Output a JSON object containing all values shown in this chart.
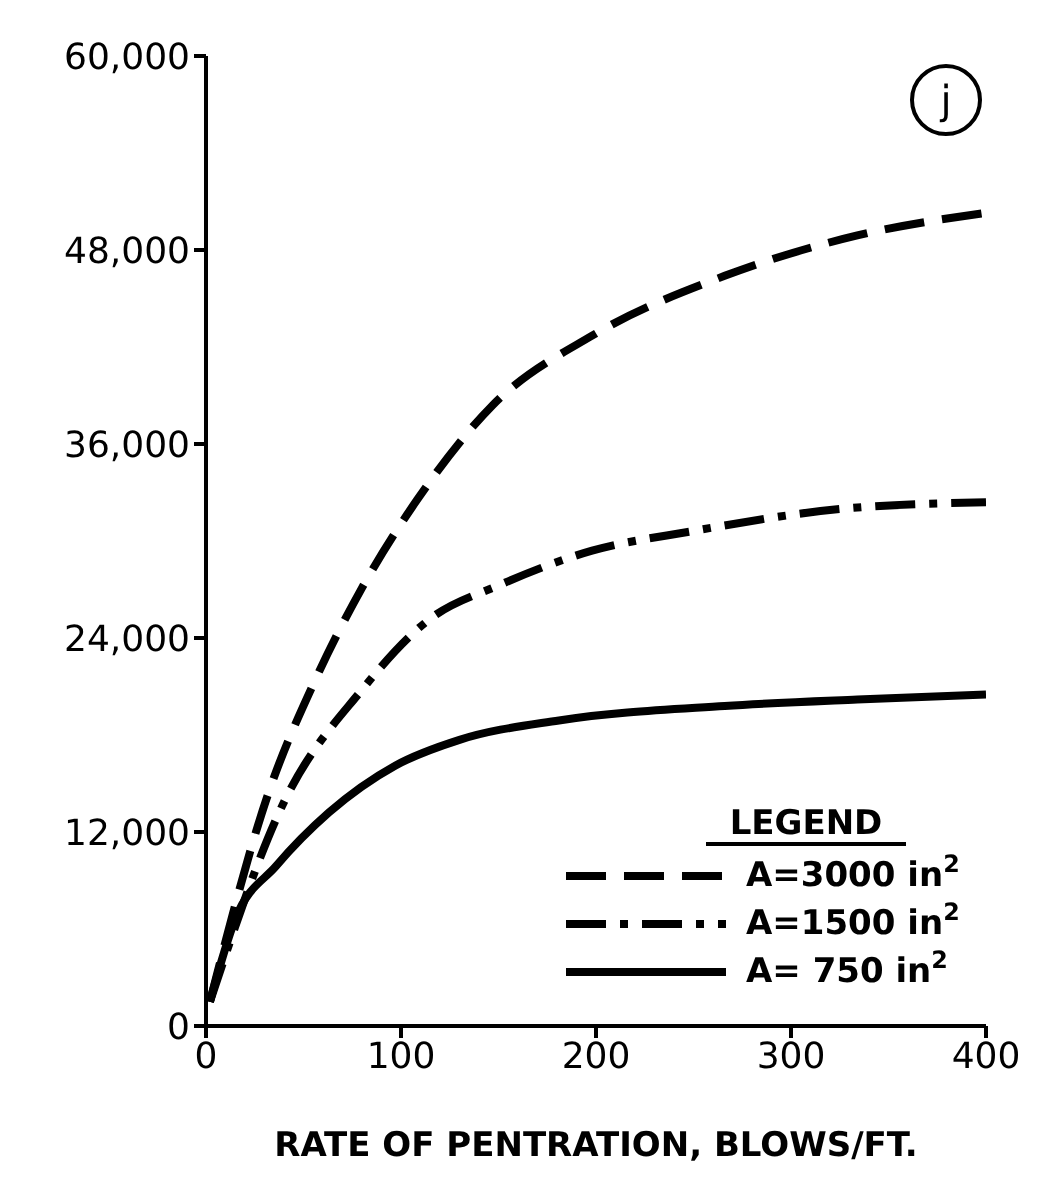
{
  "chart_data": {
    "type": "line",
    "xlabel": "RATE OF PENTRATION, BLOWS/FT.",
    "legend_title": "LEGEND",
    "annotations": [
      "j"
    ],
    "xlim": [
      0,
      400
    ],
    "xticks": [
      0,
      100,
      200,
      300,
      400
    ],
    "ylim": [
      0,
      60000
    ],
    "yticks": [
      {
        "value": 0,
        "label": "0"
      },
      {
        "value": 12000,
        "label": "12,000"
      },
      {
        "value": 24000,
        "label": "24,000"
      },
      {
        "value": 36000,
        "label": "36,000"
      },
      {
        "value": 48000,
        "label": "48,000"
      },
      {
        "value": 60000,
        "label": "60,000"
      }
    ],
    "grid": false,
    "legend": "bottom right",
    "marker": "none",
    "series": [
      {
        "name": "A=3000 in$^{2}$",
        "color": "#000000",
        "line_style": "dashed",
        "x": [
          2,
          32,
          56,
          80,
          108,
          147,
          198,
          266,
          334,
          400
        ],
        "values": [
          1500,
          14400,
          21400,
          27100,
          32500,
          38400,
          42700,
          46400,
          48900,
          50300
        ]
      },
      {
        "name": "A=1500 in$^{2}$",
        "color": "#000000",
        "line_style": "dashdot",
        "x": [
          2,
          39,
          80,
          114,
          151,
          198,
          249,
          327,
          400
        ],
        "values": [
          1500,
          13600,
          20800,
          25100,
          27300,
          29400,
          30600,
          32000,
          32400
        ]
      },
      {
        "name": "A= 750 in$^{2}$",
        "color": "#000000",
        "line_style": "solid",
        "x": [
          2,
          15,
          36,
          63,
          97,
          130,
          181,
          266,
          334,
          400
        ],
        "values": [
          1500,
          6600,
          9900,
          13200,
          16100,
          17700,
          18900,
          19800,
          20200,
          20500
        ]
      }
    ]
  }
}
